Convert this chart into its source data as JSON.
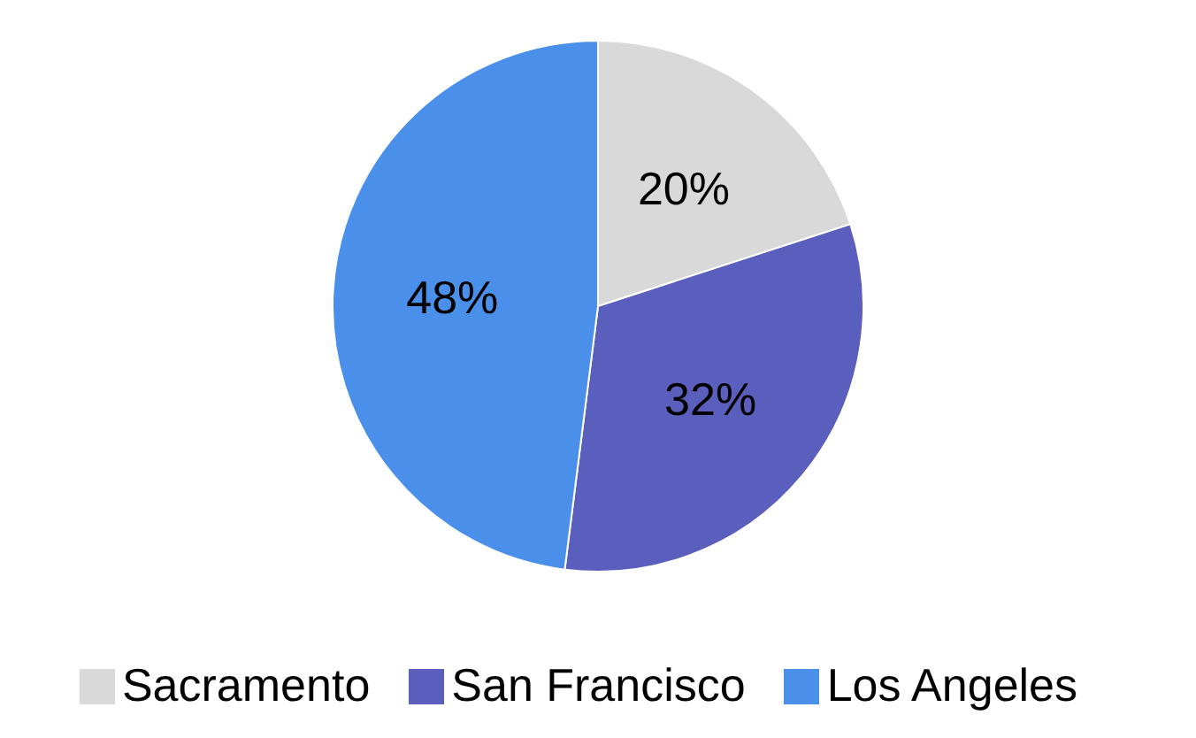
{
  "chart_data": {
    "type": "pie",
    "categories": [
      "Sacramento",
      "San Francisco",
      "Los Angeles"
    ],
    "values": [
      20,
      32,
      48
    ],
    "colors": [
      "#d9d9d9",
      "#5a5fbd",
      "#4a8fea"
    ],
    "value_labels": [
      "20%",
      "32%",
      "48%"
    ],
    "legend": "bottom"
  }
}
